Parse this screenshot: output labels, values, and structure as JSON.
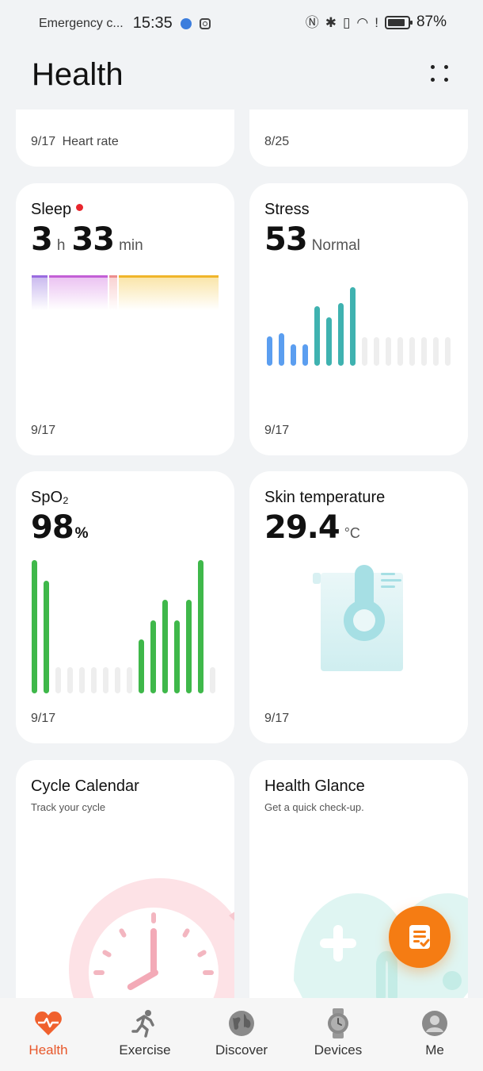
{
  "status_bar": {
    "carrier": "Emergency c...",
    "time": "15:35",
    "battery_pct": "87%",
    "battery_level": 0.87
  },
  "header": {
    "title": "Health"
  },
  "cards": {
    "heart_rate": {
      "date": "9/17",
      "label": "Heart rate"
    },
    "top_right": {
      "date": "8/25"
    },
    "sleep": {
      "title": "Sleep",
      "hours": "3",
      "hours_unit": "h",
      "minutes": "33",
      "minutes_unit": "min",
      "date": "9/17"
    },
    "stress": {
      "title": "Stress",
      "value": "53",
      "status": "Normal",
      "date": "9/17"
    },
    "spo2": {
      "title": "SpO₂",
      "value": "98",
      "unit": "%",
      "date": "9/17"
    },
    "skin_temp": {
      "title": "Skin temperature",
      "value": "29.4",
      "unit": "°C",
      "date": "9/17"
    },
    "cycle": {
      "title": "Cycle Calendar",
      "subtitle": "Track your cycle"
    },
    "glance": {
      "title": "Health Glance",
      "subtitle": "Get a quick check-up."
    }
  },
  "nav": [
    {
      "label": "Health",
      "icon": "heart-pulse-icon",
      "active": true
    },
    {
      "label": "Exercise",
      "icon": "running-icon",
      "active": false
    },
    {
      "label": "Discover",
      "icon": "globe-icon",
      "active": false
    },
    {
      "label": "Devices",
      "icon": "watch-icon",
      "active": false
    },
    {
      "label": "Me",
      "icon": "profile-icon",
      "active": false
    }
  ],
  "colors": {
    "accent": "#e8572a",
    "stress_blue": "#5b9ef0",
    "stress_teal": "#3fb2b0",
    "spo2_green": "#3fb84a",
    "fab": "#f57c13"
  }
}
